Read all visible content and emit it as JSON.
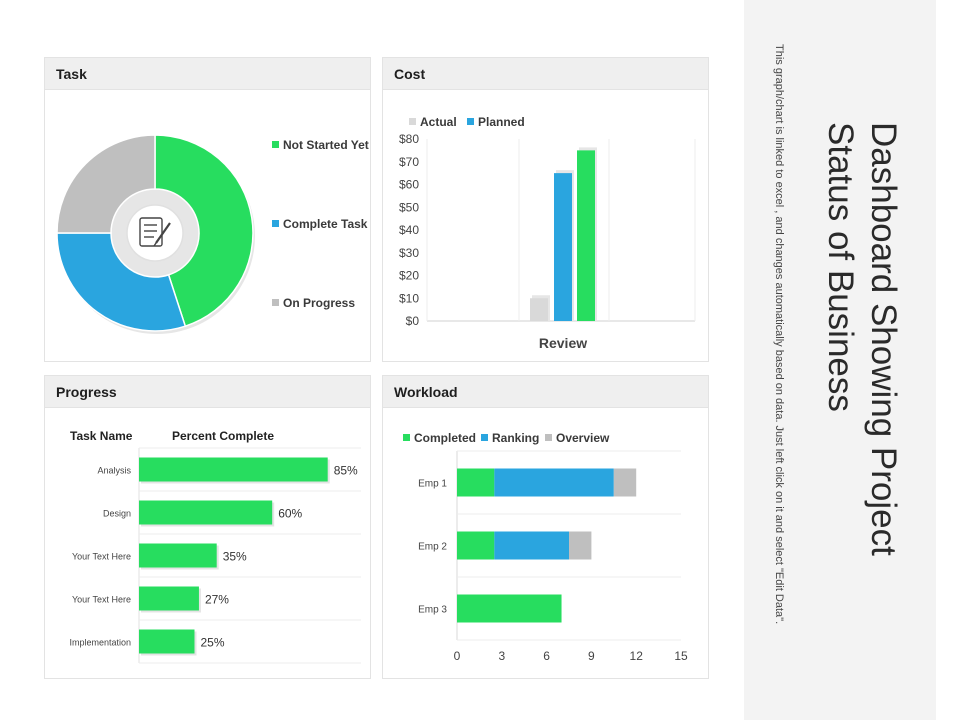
{
  "task": {
    "header": "Task",
    "legend": [
      "Not Started Yet",
      "Complete Task",
      "On Progress"
    ],
    "center_icon": "checklist-icon"
  },
  "cost": {
    "header": "Cost",
    "legend": [
      "Actual",
      "Planned"
    ],
    "category_label": "Review"
  },
  "progress": {
    "header": "Progress",
    "col_task": "Task Name",
    "col_percent": "Percent Complete"
  },
  "workload": {
    "header": "Workload",
    "legend": [
      "Completed",
      "Ranking",
      "Overview"
    ]
  },
  "sidebar": {
    "title_line1": "Dashboard Showing Project",
    "title_line2": "Status of Business",
    "subtitle": "This graph/chart is linked to excel , and changes automatically based on data. Just left click on it and select \"Edit Data\"."
  },
  "colors": {
    "green": "#27dd5f",
    "blue": "#2aa5df",
    "gray": "#bfbfbf",
    "lightgray": "#d9d9d9"
  },
  "chart_data": [
    {
      "type": "pie",
      "title": "Task",
      "labels": [
        "Not Started Yet",
        "Complete Task",
        "On Progress"
      ],
      "values": [
        45,
        30,
        25
      ]
    },
    {
      "type": "bar",
      "title": "Cost",
      "categories": [
        "Review"
      ],
      "series": [
        {
          "name": "Actual",
          "values": [
            10
          ]
        },
        {
          "name": "Planned",
          "values": [
            65
          ]
        },
        {
          "name": "",
          "values": [
            75
          ]
        }
      ],
      "ylim": [
        0,
        80
      ],
      "yticks": [
        "$0",
        "$10",
        "$20",
        "$30",
        "$40",
        "$50",
        "$60",
        "$70",
        "$80"
      ],
      "xlabel": "Review"
    },
    {
      "type": "bar",
      "title": "Progress",
      "orientation": "horizontal",
      "categories": [
        "Analysis",
        "Design",
        "Your Text Here",
        "Your Text Here",
        "Implementation"
      ],
      "values": [
        85,
        60,
        35,
        27,
        25
      ],
      "value_labels": [
        "85%",
        "60%",
        "35%",
        "27%",
        "25%"
      ],
      "xlim": [
        0,
        100
      ]
    },
    {
      "type": "bar",
      "title": "Workload",
      "orientation": "horizontal",
      "stacked": true,
      "categories": [
        "Emp 1",
        "Emp 2",
        "Emp 3"
      ],
      "series": [
        {
          "name": "Completed",
          "values": [
            2.5,
            2.5,
            7
          ]
        },
        {
          "name": "Ranking",
          "values": [
            8,
            5,
            0
          ]
        },
        {
          "name": "Overview",
          "values": [
            1.5,
            1.5,
            0
          ]
        }
      ],
      "xlim": [
        0,
        15
      ],
      "xticks": [
        "0",
        "3",
        "6",
        "9",
        "12",
        "15"
      ]
    }
  ]
}
